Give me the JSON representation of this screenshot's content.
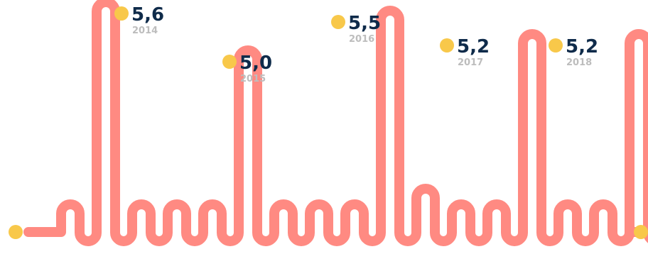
{
  "chart_data": {
    "type": "line",
    "categories": [
      "2014",
      "2015",
      "2016",
      "2017",
      "2018"
    ],
    "values": [
      5.6,
      5.0,
      5.5,
      5.2,
      5.2
    ],
    "value_labels": [
      "5,6",
      "5,0",
      "5,5",
      "5,2",
      "5,2"
    ],
    "title": "",
    "xlabel": "",
    "ylabel": "",
    "grid": false,
    "legend": "none"
  },
  "colors": {
    "line": "#FF8A82",
    "marker": "#F8C84A",
    "value_text": "#0F2B4A",
    "year_text": "#BDBDBD",
    "background": "#FFFFFF"
  }
}
